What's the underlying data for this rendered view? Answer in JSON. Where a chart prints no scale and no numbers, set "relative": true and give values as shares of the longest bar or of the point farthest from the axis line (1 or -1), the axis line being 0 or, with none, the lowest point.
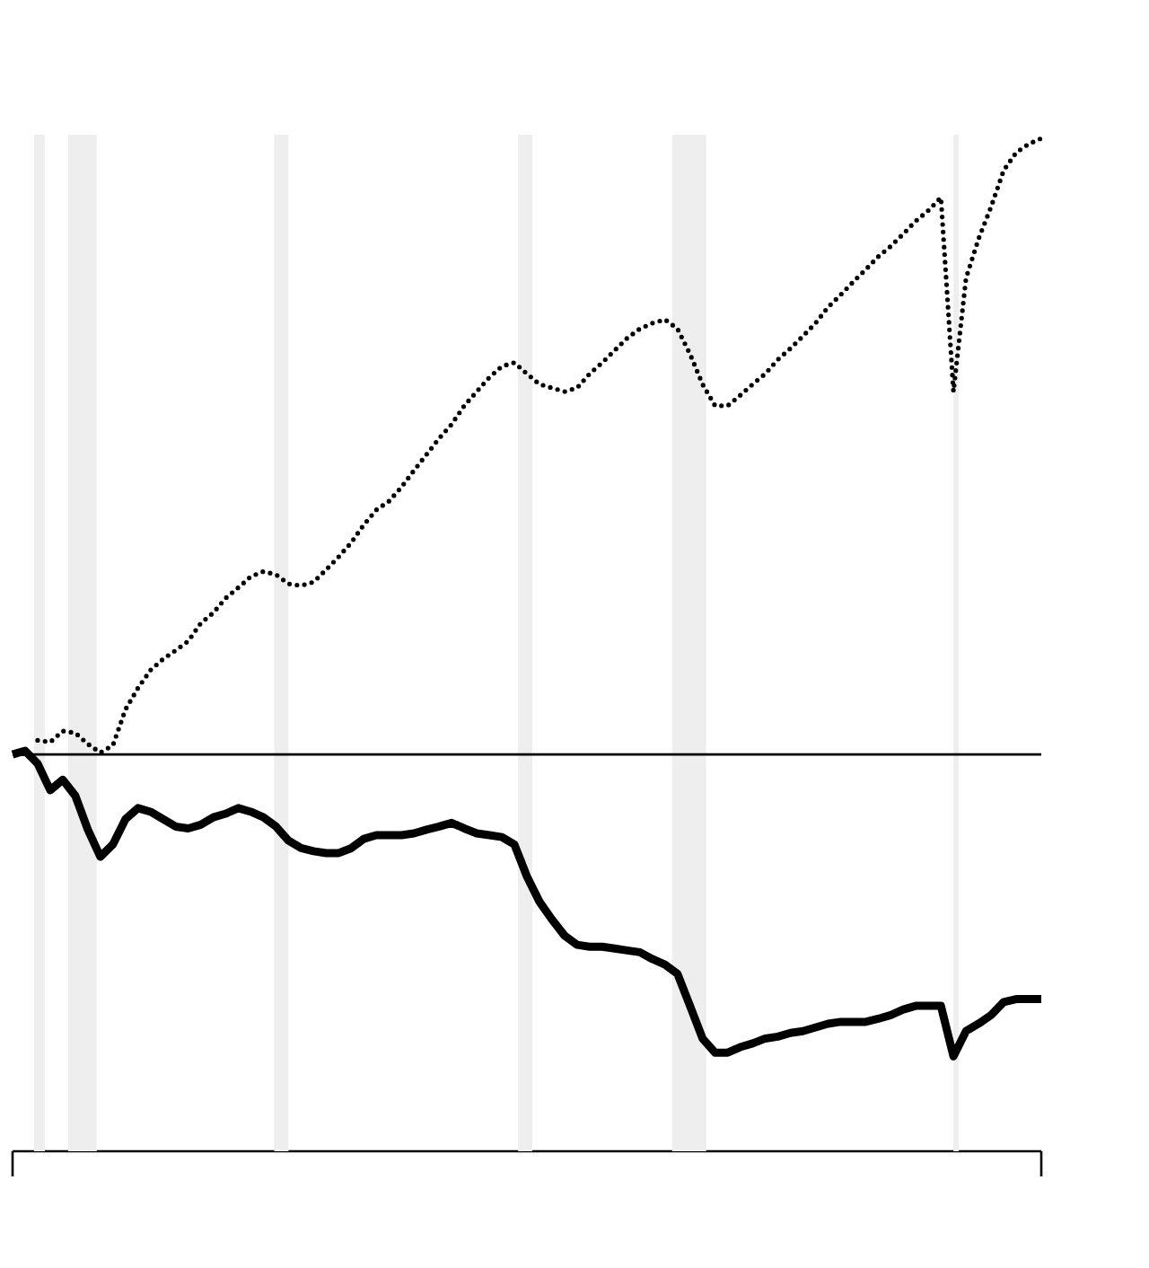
{
  "chart_data": {
    "type": "line",
    "relative": true,
    "categories": [
      null,
      null,
      null,
      null,
      null,
      null,
      null,
      null,
      null,
      null,
      null,
      null,
      null,
      null,
      null,
      null,
      null,
      null,
      null,
      null,
      null,
      null,
      null,
      null,
      null,
      null,
      null,
      null,
      null,
      null,
      null,
      null,
      null,
      null,
      null,
      null,
      null,
      null,
      null,
      null,
      null,
      null,
      null,
      null,
      null,
      null,
      null,
      null,
      null,
      null,
      null,
      null,
      null,
      null,
      null,
      null,
      null,
      null,
      null,
      null,
      null,
      null,
      null,
      null,
      null,
      null,
      null,
      null,
      null,
      null,
      null,
      null,
      null,
      null,
      null,
      null,
      null,
      null,
      null,
      null,
      null,
      null,
      null
    ],
    "series": [
      {
        "color": "#000000",
        "line_style": "dotted",
        "values": [
          null,
          null,
          0.023,
          0.02,
          0.038,
          0.035,
          0.017,
          0.003,
          0.015,
          0.073,
          0.108,
          0.137,
          0.155,
          0.169,
          0.184,
          0.213,
          0.23,
          0.254,
          0.271,
          0.289,
          0.297,
          0.292,
          0.277,
          0.274,
          0.28,
          0.3,
          0.321,
          0.344,
          0.373,
          0.397,
          0.411,
          0.434,
          0.461,
          0.487,
          0.513,
          0.536,
          0.566,
          0.589,
          0.612,
          0.63,
          0.636,
          0.618,
          0.601,
          0.595,
          0.589,
          0.595,
          0.618,
          0.636,
          0.656,
          0.676,
          0.691,
          0.7,
          0.706,
          0.691,
          0.65,
          0.601,
          0.566,
          0.566,
          0.583,
          0.601,
          0.618,
          0.641,
          0.659,
          0.679,
          0.7,
          0.726,
          0.746,
          0.767,
          0.787,
          0.808,
          0.825,
          0.845,
          0.866,
          0.883,
          0.904,
          0.589,
          0.773,
          0.837,
          0.889,
          0.948,
          0.977,
          0.991,
          1
        ]
      },
      {
        "color": "#000000",
        "line_style": "solid",
        "values": [
          0,
          0.006,
          -0.015,
          -0.058,
          -0.041,
          -0.067,
          -0.122,
          -0.166,
          -0.146,
          -0.105,
          -0.087,
          -0.093,
          -0.105,
          -0.117,
          -0.12,
          -0.114,
          -0.102,
          -0.096,
          -0.087,
          -0.093,
          -0.102,
          -0.117,
          -0.14,
          -0.152,
          -0.157,
          -0.16,
          -0.16,
          -0.152,
          -0.137,
          -0.131,
          -0.131,
          -0.131,
          -0.128,
          -0.122,
          -0.117,
          -0.111,
          -0.12,
          -0.128,
          -0.131,
          -0.134,
          -0.146,
          -0.198,
          -0.239,
          -0.268,
          -0.294,
          -0.309,
          -0.312,
          -0.312,
          -0.315,
          -0.318,
          -0.321,
          -0.332,
          -0.341,
          -0.356,
          -0.408,
          -0.461,
          -0.484,
          -0.484,
          -0.475,
          -0.469,
          -0.461,
          -0.458,
          -0.452,
          -0.449,
          -0.443,
          -0.437,
          -0.434,
          -0.434,
          -0.434,
          -0.429,
          -0.423,
          -0.414,
          -0.408,
          -0.408,
          -0.408,
          -0.49,
          -0.449,
          -0.437,
          -0.423,
          -0.402,
          -0.397,
          -0.397,
          -0.397
        ]
      }
    ],
    "ref_lines": [
      {
        "axis": "y",
        "value": 0,
        "color": "#000000"
      }
    ]
  }
}
